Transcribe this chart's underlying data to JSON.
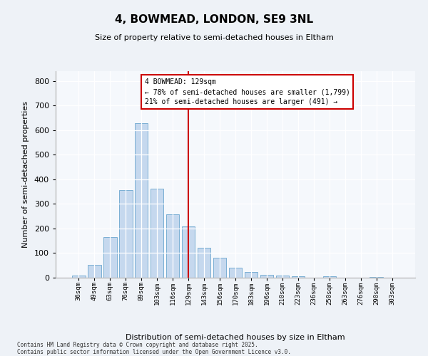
{
  "title": "4, BOWMEAD, LONDON, SE9 3NL",
  "subtitle": "Size of property relative to semi-detached houses in Eltham",
  "xlabel": "Distribution of semi-detached houses by size in Eltham",
  "ylabel": "Number of semi-detached properties",
  "categories": [
    "36sqm",
    "49sqm",
    "63sqm",
    "76sqm",
    "89sqm",
    "103sqm",
    "116sqm",
    "129sqm",
    "143sqm",
    "156sqm",
    "170sqm",
    "183sqm",
    "196sqm",
    "210sqm",
    "223sqm",
    "236sqm",
    "250sqm",
    "263sqm",
    "276sqm",
    "290sqm",
    "303sqm"
  ],
  "values": [
    8,
    52,
    165,
    355,
    630,
    363,
    258,
    210,
    123,
    80,
    40,
    22,
    13,
    10,
    7,
    0,
    6,
    0,
    0,
    4,
    0
  ],
  "bar_color": "#c5d8ee",
  "bar_edge_color": "#7aafd4",
  "marker_index": 7,
  "marker_line_color": "#cc0000",
  "annotation_line1": "4 BOWMEAD: 129sqm",
  "annotation_line2": "← 78% of semi-detached houses are smaller (1,799)",
  "annotation_line3": "21% of semi-detached houses are larger (491) →",
  "annotation_box_color": "#cc0000",
  "ylim": [
    0,
    840
  ],
  "yticks": [
    0,
    100,
    200,
    300,
    400,
    500,
    600,
    700,
    800
  ],
  "footnote1": "Contains HM Land Registry data © Crown copyright and database right 2025.",
  "footnote2": "Contains public sector information licensed under the Open Government Licence v3.0.",
  "bg_color": "#eef2f7",
  "plot_bg_color": "#f5f8fc"
}
